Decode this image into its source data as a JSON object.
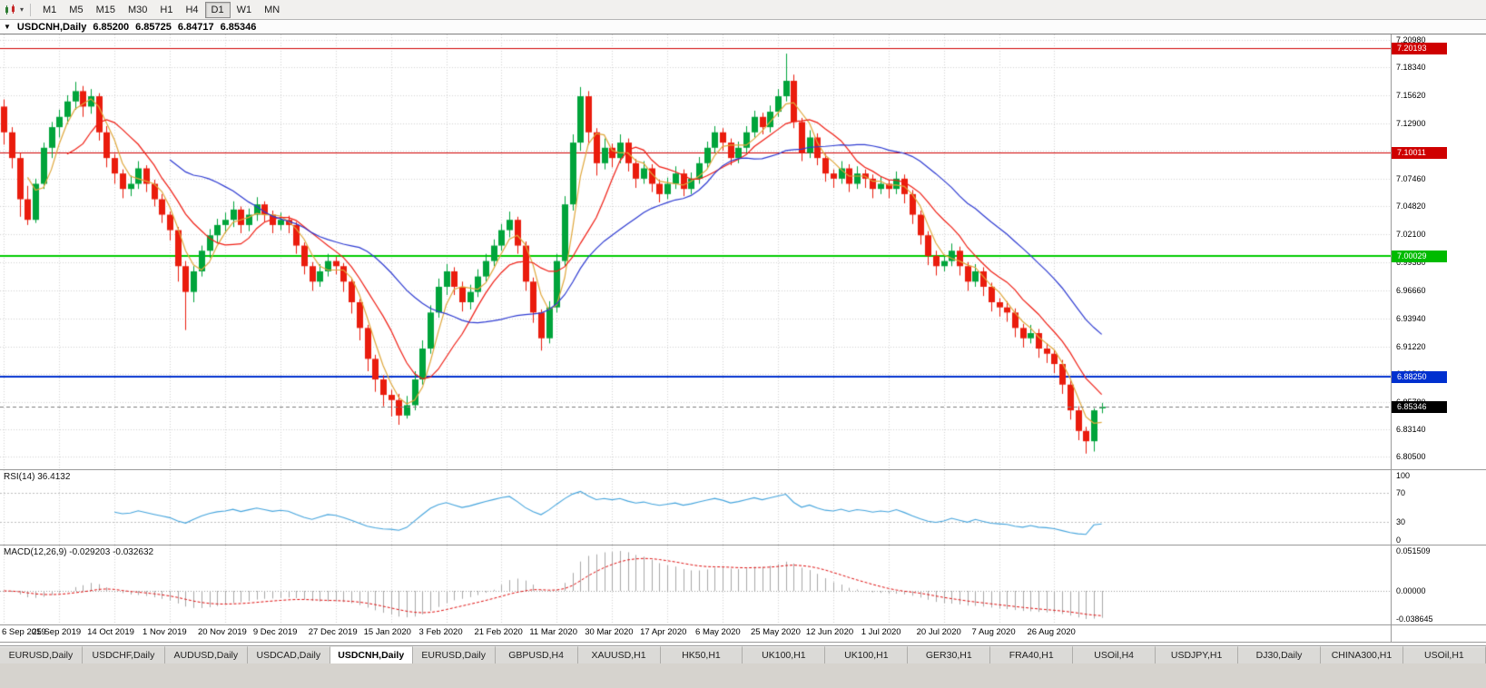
{
  "toolbar": {
    "timeframes": [
      "M1",
      "M5",
      "M15",
      "M30",
      "H1",
      "H4",
      "D1",
      "W1",
      "MN"
    ],
    "active_timeframe": "D1",
    "dropdown_glyph": "▾"
  },
  "chart_header": {
    "dropdown_glyph": "▼",
    "symbol": "USDCNH,Daily",
    "open": "6.85200",
    "high": "6.85725",
    "low": "6.84717",
    "close": "6.85346"
  },
  "indicators": {
    "rsi": {
      "label": "RSI(14) 36.4132",
      "value": "36.4132",
      "axis": [
        "100",
        "70",
        "30",
        "0"
      ]
    },
    "macd": {
      "label": "MACD(12,26,9) -0.029203 -0.032632",
      "axis_top": "0.051509",
      "axis_zero": "0.00000",
      "axis_bottom": "-0.038645"
    }
  },
  "tabs": {
    "items": [
      "EURUSD,Daily",
      "USDCHF,Daily",
      "AUDUSD,Daily",
      "USDCAD,Daily",
      "USDCNH,Daily",
      "EURUSD,Daily",
      "GBPUSD,H4",
      "XAUUSD,H1",
      "HK50,H1",
      "UK100,H1",
      "UK100,H1",
      "GER30,H1",
      "FRA40,H1",
      "USOil,H4",
      "USDJPY,H1",
      "DJ30,Daily",
      "CHINA300,H1",
      "USOil,H1"
    ],
    "active_index": 4
  },
  "chart_data": {
    "type": "candlestick",
    "symbol": "USDCNH",
    "timeframe": "Daily",
    "y_max": 7.215,
    "y_min": 6.7928,
    "up_color": "#00a43b",
    "down_color": "#ea1c0d",
    "grid_color": "#d4d4d4",
    "price_ticks": [
      {
        "label": "7.20980",
        "value": 7.2098
      },
      {
        "label": "7.18340",
        "value": 7.1834
      },
      {
        "label": "7.15620",
        "value": 7.1562
      },
      {
        "label": "7.12900",
        "value": 7.129
      },
      {
        "label": "7.10180",
        "value": 7.1018
      },
      {
        "label": "7.07460",
        "value": 7.0746
      },
      {
        "label": "7.04820",
        "value": 7.0482
      },
      {
        "label": "7.02100",
        "value": 7.021
      },
      {
        "label": "6.99380",
        "value": 6.9938
      },
      {
        "label": "6.96660",
        "value": 6.9666
      },
      {
        "label": "6.93940",
        "value": 6.9394
      },
      {
        "label": "6.91220",
        "value": 6.9122
      },
      {
        "label": "6.88500",
        "value": 6.885
      },
      {
        "label": "6.85780",
        "value": 6.8578
      },
      {
        "label": "6.83140",
        "value": 6.8314
      },
      {
        "label": "6.80500",
        "value": 6.805
      }
    ],
    "levels": [
      {
        "value": 7.20193,
        "color": "#cf0000",
        "width": 1,
        "badge": "7.20193",
        "badge_color": "#cf0000"
      },
      {
        "value": 7.10011,
        "color": "#cf0000",
        "width": 1,
        "badge": "7.10011",
        "badge_color": "#cf0000"
      },
      {
        "value": 7.00029,
        "color": "#00cc00",
        "width": 2,
        "badge": "7.00029",
        "badge_color": "#00bb00"
      },
      {
        "value": 6.8825,
        "color": "#0030cf",
        "width": 2,
        "badge": "6.88250",
        "badge_color": "#0030cf"
      }
    ],
    "bid": {
      "value": 6.85346,
      "label": "6.85346",
      "badge_color": "#000000"
    },
    "moving_averages": [
      {
        "type": "sma",
        "period": 4,
        "color": "#e0a83c"
      },
      {
        "type": "sma",
        "period": 9,
        "color": "#f01e14"
      },
      {
        "type": "sma",
        "period": 22,
        "color": "#2e3bd2"
      }
    ],
    "rsi": {
      "period": 14,
      "color": "#44a4dd",
      "levels": [
        70,
        30
      ],
      "last_value": 36.4132
    },
    "macd": {
      "fast": 12,
      "slow": 26,
      "signal": 9,
      "hist_color": "#a8a8a8",
      "signal_color": "#e01010",
      "main_value": -0.029203,
      "signal_value": -0.032632
    },
    "x_labels": [
      [
        "6 Sep 2019",
        0
      ],
      [
        "25 Sep 2019",
        7
      ],
      [
        "14 Oct 2019",
        14
      ],
      [
        "1 Nov 2019",
        21
      ],
      [
        "20 Nov 2019",
        28
      ],
      [
        "9 Dec 2019",
        35
      ],
      [
        "27 Dec 2019",
        42
      ],
      [
        "15 Jan 2020",
        49
      ],
      [
        "3 Feb 2020",
        56
      ],
      [
        "21 Feb 2020",
        63
      ],
      [
        "11 Mar 2020",
        70
      ],
      [
        "30 Mar 2020",
        77
      ],
      [
        "17 Apr 2020",
        84
      ],
      [
        "6 May 2020",
        91
      ],
      [
        "25 May 2020",
        98
      ],
      [
        "12 Jun 2020",
        105
      ],
      [
        "1 Jul 2020",
        112
      ],
      [
        "20 Jul 2020",
        119
      ],
      [
        "7 Aug 2020",
        126
      ],
      [
        "26 Aug 2020",
        133
      ]
    ],
    "bars": [
      [
        7.145,
        7.152,
        7.108,
        7.12
      ],
      [
        7.12,
        7.125,
        7.085,
        7.095
      ],
      [
        7.095,
        7.1,
        7.038,
        7.055
      ],
      [
        7.055,
        7.068,
        7.03,
        7.035
      ],
      [
        7.035,
        7.075,
        7.032,
        7.07
      ],
      [
        7.07,
        7.11,
        7.065,
        7.105
      ],
      [
        7.105,
        7.13,
        7.095,
        7.125
      ],
      [
        7.125,
        7.142,
        7.115,
        7.135
      ],
      [
        7.135,
        7.156,
        7.128,
        7.15
      ],
      [
        7.15,
        7.169,
        7.142,
        7.16
      ],
      [
        7.16,
        7.165,
        7.135,
        7.145
      ],
      [
        7.145,
        7.162,
        7.138,
        7.155
      ],
      [
        7.155,
        7.158,
        7.112,
        7.12
      ],
      [
        7.12,
        7.126,
        7.086,
        7.095
      ],
      [
        7.095,
        7.099,
        7.07,
        7.08
      ],
      [
        7.08,
        7.084,
        7.056,
        7.065
      ],
      [
        7.065,
        7.078,
        7.058,
        7.07
      ],
      [
        7.07,
        7.092,
        7.065,
        7.085
      ],
      [
        7.085,
        7.088,
        7.062,
        7.07
      ],
      [
        7.07,
        7.074,
        7.048,
        7.055
      ],
      [
        7.055,
        7.06,
        7.032,
        7.04
      ],
      [
        7.04,
        7.043,
        7.015,
        7.025
      ],
      [
        7.025,
        7.028,
        6.975,
        6.99
      ],
      [
        6.99,
        6.995,
        6.928,
        6.965
      ],
      [
        6.965,
        6.99,
        6.955,
        6.985
      ],
      [
        6.985,
        7.01,
        6.98,
        7.005
      ],
      [
        7.005,
        7.026,
        6.998,
        7.02
      ],
      [
        7.02,
        7.036,
        7.012,
        7.03
      ],
      [
        7.03,
        7.042,
        7.022,
        7.035
      ],
      [
        7.035,
        7.053,
        7.028,
        7.045
      ],
      [
        7.045,
        7.048,
        7.022,
        7.03
      ],
      [
        7.03,
        7.046,
        7.024,
        7.04
      ],
      [
        7.04,
        7.057,
        7.034,
        7.05
      ],
      [
        7.05,
        7.053,
        7.033,
        7.04
      ],
      [
        7.04,
        7.044,
        7.022,
        7.03
      ],
      [
        7.03,
        7.042,
        7.025,
        7.035
      ],
      [
        7.035,
        7.039,
        7.022,
        7.03
      ],
      [
        7.03,
        7.033,
        7.002,
        7.01
      ],
      [
        7.01,
        7.013,
        6.982,
        6.99
      ],
      [
        6.99,
        6.994,
        6.966,
        6.975
      ],
      [
        6.975,
        6.992,
        6.97,
        6.985
      ],
      [
        6.985,
        7.002,
        6.98,
        6.995
      ],
      [
        6.995,
        6.999,
        6.982,
        6.99
      ],
      [
        6.99,
        6.993,
        6.965,
        6.975
      ],
      [
        6.975,
        6.978,
        6.944,
        6.955
      ],
      [
        6.955,
        6.958,
        6.918,
        6.93
      ],
      [
        6.93,
        6.933,
        6.888,
        6.9
      ],
      [
        6.9,
        6.904,
        6.868,
        6.88
      ],
      [
        6.88,
        6.884,
        6.854,
        6.865
      ],
      [
        6.865,
        6.87,
        6.844,
        6.86
      ],
      [
        6.86,
        6.866,
        6.836,
        6.845
      ],
      [
        6.845,
        6.864,
        6.842,
        6.855
      ],
      [
        6.855,
        6.888,
        6.85,
        6.88
      ],
      [
        6.88,
        6.918,
        6.875,
        6.91
      ],
      [
        6.91,
        6.952,
        6.905,
        6.945
      ],
      [
        6.945,
        6.978,
        6.94,
        6.97
      ],
      [
        6.97,
        6.992,
        6.962,
        6.985
      ],
      [
        6.985,
        6.989,
        6.962,
        6.97
      ],
      [
        6.97,
        6.975,
        6.946,
        6.955
      ],
      [
        6.955,
        6.972,
        6.948,
        6.965
      ],
      [
        6.965,
        6.987,
        6.96,
        6.98
      ],
      [
        6.98,
        7.002,
        6.975,
        6.995
      ],
      [
        6.995,
        7.016,
        6.99,
        7.01
      ],
      [
        7.01,
        7.031,
        7.005,
        7.025
      ],
      [
        7.025,
        7.043,
        7.018,
        7.035
      ],
      [
        7.035,
        7.038,
        7.002,
        7.01
      ],
      [
        7.01,
        7.014,
        6.966,
        6.975
      ],
      [
        6.975,
        6.979,
        6.935,
        6.945
      ],
      [
        6.945,
        6.948,
        6.908,
        6.92
      ],
      [
        6.92,
        6.956,
        6.915,
        6.95
      ],
      [
        6.95,
        7.002,
        6.945,
        6.995
      ],
      [
        6.995,
        7.058,
        6.99,
        7.05
      ],
      [
        7.05,
        7.118,
        7.044,
        7.11
      ],
      [
        7.11,
        7.164,
        7.102,
        7.155
      ],
      [
        7.155,
        7.16,
        7.108,
        7.12
      ],
      [
        7.12,
        7.124,
        7.078,
        7.09
      ],
      [
        7.09,
        7.114,
        7.084,
        7.105
      ],
      [
        7.105,
        7.109,
        7.086,
        7.095
      ],
      [
        7.095,
        7.118,
        7.09,
        7.11
      ],
      [
        7.11,
        7.114,
        7.082,
        7.09
      ],
      [
        7.09,
        7.094,
        7.066,
        7.075
      ],
      [
        7.075,
        7.092,
        7.07,
        7.085
      ],
      [
        7.085,
        7.089,
        7.062,
        7.07
      ],
      [
        7.07,
        7.074,
        7.052,
        7.06
      ],
      [
        7.06,
        7.076,
        7.055,
        7.07
      ],
      [
        7.07,
        7.087,
        7.065,
        7.08
      ],
      [
        7.08,
        7.084,
        7.058,
        7.065
      ],
      [
        7.065,
        7.081,
        7.06,
        7.075
      ],
      [
        7.075,
        7.096,
        7.07,
        7.09
      ],
      [
        7.09,
        7.111,
        7.085,
        7.105
      ],
      [
        7.105,
        7.126,
        7.1,
        7.12
      ],
      [
        7.12,
        7.124,
        7.102,
        7.11
      ],
      [
        7.11,
        7.114,
        7.088,
        7.095
      ],
      [
        7.095,
        7.111,
        7.09,
        7.105
      ],
      [
        7.105,
        7.126,
        7.1,
        7.12
      ],
      [
        7.12,
        7.141,
        7.115,
        7.135
      ],
      [
        7.135,
        7.139,
        7.118,
        7.125
      ],
      [
        7.125,
        7.146,
        7.12,
        7.14
      ],
      [
        7.14,
        7.162,
        7.135,
        7.155
      ],
      [
        7.155,
        7.1964,
        7.15,
        7.17
      ],
      [
        7.17,
        7.176,
        7.124,
        7.13
      ],
      [
        7.13,
        7.134,
        7.092,
        7.1
      ],
      [
        7.1,
        7.122,
        7.095,
        7.115
      ],
      [
        7.115,
        7.119,
        7.088,
        7.095
      ],
      [
        7.095,
        7.099,
        7.072,
        7.08
      ],
      [
        7.08,
        7.084,
        7.066,
        7.075
      ],
      [
        7.075,
        7.092,
        7.07,
        7.085
      ],
      [
        7.085,
        7.089,
        7.062,
        7.07
      ],
      [
        7.07,
        7.087,
        7.065,
        7.08
      ],
      [
        7.08,
        7.084,
        7.066,
        7.075
      ],
      [
        7.075,
        7.079,
        7.056,
        7.065
      ],
      [
        7.065,
        7.077,
        7.06,
        7.07
      ],
      [
        7.07,
        7.074,
        7.056,
        7.065
      ],
      [
        7.065,
        7.082,
        7.06,
        7.075
      ],
      [
        7.075,
        7.079,
        7.051,
        7.06
      ],
      [
        7.06,
        7.064,
        7.031,
        7.04
      ],
      [
        7.04,
        7.044,
        7.011,
        7.02
      ],
      [
        7.02,
        7.024,
        6.991,
        7.0
      ],
      [
        7.0,
        7.005,
        6.981,
        6.99
      ],
      [
        6.99,
        7.001,
        6.985,
        6.995
      ],
      [
        6.995,
        7.012,
        6.99,
        7.005
      ],
      [
        7.005,
        7.009,
        6.981,
        6.99
      ],
      [
        6.99,
        6.994,
        6.966,
        6.975
      ],
      [
        6.975,
        6.992,
        6.97,
        6.985
      ],
      [
        6.985,
        6.989,
        6.961,
        6.97
      ],
      [
        6.97,
        6.974,
        6.946,
        6.955
      ],
      [
        6.955,
        6.959,
        6.941,
        6.95
      ],
      [
        6.95,
        6.956,
        6.936,
        6.945
      ],
      [
        6.945,
        6.949,
        6.921,
        6.93
      ],
      [
        6.93,
        6.934,
        6.911,
        6.92
      ],
      [
        6.92,
        6.933,
        6.915,
        6.925
      ],
      [
        6.925,
        6.929,
        6.901,
        6.91
      ],
      [
        6.91,
        6.915,
        6.896,
        6.905
      ],
      [
        6.905,
        6.909,
        6.886,
        6.895
      ],
      [
        6.895,
        6.899,
        6.866,
        6.875
      ],
      [
        6.875,
        6.879,
        6.841,
        6.85
      ],
      [
        6.85,
        6.854,
        6.821,
        6.83
      ],
      [
        6.83,
        6.834,
        6.808,
        6.82
      ],
      [
        6.82,
        6.852,
        6.81,
        6.85
      ],
      [
        6.852,
        6.85725,
        6.84717,
        6.85346
      ]
    ]
  }
}
